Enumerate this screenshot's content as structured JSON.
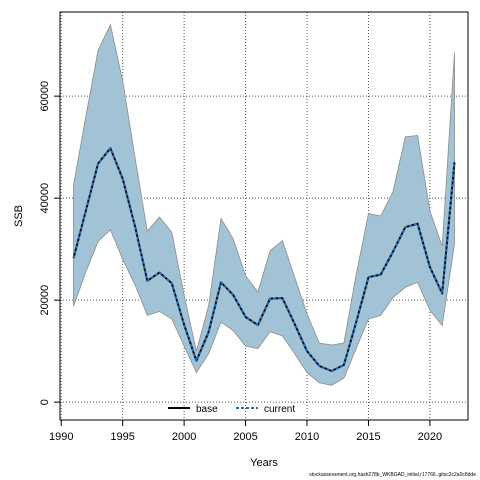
{
  "chart_data": {
    "type": "line",
    "title": "",
    "xlabel": "Years",
    "ylabel": "SSB",
    "xlim": [
      1989.9,
      2023.1
    ],
    "ylim": [
      -3500,
      76500
    ],
    "xticks": [
      1990,
      1995,
      2000,
      2005,
      2010,
      2015,
      2020
    ],
    "yticks": [
      0,
      20000,
      40000,
      60000
    ],
    "grid": true,
    "legend_position": "bottom-center",
    "x": [
      1991,
      1992,
      1993,
      1994,
      1995,
      1996,
      1997,
      1998,
      1999,
      2000,
      2001,
      2002,
      2003,
      2004,
      2005,
      2006,
      2007,
      2008,
      2009,
      2010,
      2011,
      2012,
      2013,
      2014,
      2015,
      2016,
      2017,
      2018,
      2019,
      2020,
      2021,
      2022
    ],
    "band": {
      "color": "#a2c3d6",
      "edge_color": "#8c8c8c",
      "lower": [
        18800,
        25500,
        31500,
        33800,
        28000,
        23000,
        17000,
        17800,
        16300,
        11000,
        5800,
        9500,
        15700,
        14000,
        11000,
        10500,
        13800,
        13000,
        9500,
        5800,
        3800,
        3300,
        4700,
        10500,
        16300,
        17000,
        20500,
        22500,
        23500,
        18000,
        15000,
        31000
      ],
      "upper": [
        42500,
        56000,
        69000,
        74000,
        63000,
        48000,
        33500,
        36300,
        33300,
        21000,
        10000,
        19000,
        36000,
        32000,
        24800,
        21600,
        29700,
        31700,
        24500,
        17300,
        11600,
        11200,
        11600,
        25000,
        37000,
        36500,
        41300,
        52000,
        52300,
        37500,
        30600,
        68500
      ]
    },
    "series": [
      {
        "name": "base",
        "color": "#000000",
        "values": [
          28200,
          37500,
          46800,
          49800,
          43800,
          34500,
          23800,
          25400,
          23300,
          15200,
          8100,
          13800,
          23500,
          21000,
          16700,
          15100,
          20300,
          20400,
          15300,
          10000,
          7100,
          6100,
          7300,
          15700,
          24500,
          25000,
          29500,
          34300,
          35000,
          26500,
          21300,
          47000
        ]
      },
      {
        "name": "current",
        "color": "#1f6db5",
        "values": [
          28200,
          37500,
          46800,
          49800,
          43800,
          34500,
          23800,
          25400,
          23300,
          15200,
          8100,
          13800,
          23500,
          21000,
          16700,
          15100,
          20300,
          20400,
          15300,
          10000,
          7100,
          6100,
          7300,
          15700,
          24500,
          25000,
          29500,
          34300,
          35000,
          26500,
          21300,
          47000
        ]
      }
    ]
  },
  "axis_text": {
    "x_ticks": [
      "1990",
      "1995",
      "2000",
      "2005",
      "2010",
      "2015",
      "2020"
    ],
    "y_ticks": [
      "0",
      "20000",
      "40000",
      "60000"
    ],
    "xlabel": "Years",
    "ylabel": "SSB"
  },
  "legend": {
    "base": "base",
    "current": "current"
  },
  "footnote": "stockassessment.org,hash278b_WKBGAD_initial,r17766..gitsc2c2a0c8dde"
}
